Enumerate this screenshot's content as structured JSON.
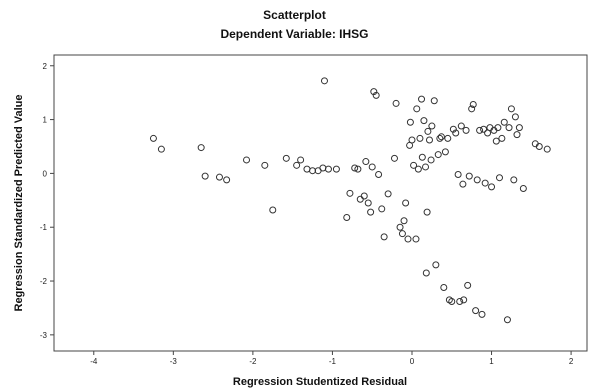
{
  "chart_data": {
    "type": "scatter",
    "title": "Scatterplot",
    "subtitle": "Dependent Variable: IHSG",
    "xlabel": "Regression Studentized Residual",
    "ylabel": "Regression Standardized Predicted Value",
    "xlim": [
      -4.5,
      2.2
    ],
    "ylim": [
      -3.3,
      2.2
    ],
    "xticks": [
      {
        "value": -4,
        "label": "-4"
      },
      {
        "value": -3,
        "label": "-3"
      },
      {
        "value": -2,
        "label": "-2"
      },
      {
        "value": -1,
        "label": "-1"
      },
      {
        "value": 0,
        "label": "0"
      },
      {
        "value": 1,
        "label": "1"
      },
      {
        "value": 2,
        "label": "2"
      }
    ],
    "yticks": [
      {
        "value": 2,
        "label": "2"
      },
      {
        "value": 1,
        "label": "1"
      },
      {
        "value": 0,
        "label": "0"
      },
      {
        "value": -1,
        "label": "-1"
      },
      {
        "value": -2,
        "label": "-2"
      },
      {
        "value": -3,
        "label": "-3"
      }
    ],
    "grid": false,
    "marker_color": "#333333",
    "background_color": "#ffffff",
    "points": [
      {
        "x": -3.25,
        "y": 0.65
      },
      {
        "x": -3.15,
        "y": 0.45
      },
      {
        "x": -2.65,
        "y": 0.48
      },
      {
        "x": -2.6,
        "y": -0.05
      },
      {
        "x": -2.42,
        "y": -0.07
      },
      {
        "x": -2.33,
        "y": -0.12
      },
      {
        "x": -2.08,
        "y": 0.25
      },
      {
        "x": -1.85,
        "y": 0.15
      },
      {
        "x": -1.75,
        "y": -0.68
      },
      {
        "x": -1.58,
        "y": 0.28
      },
      {
        "x": -1.45,
        "y": 0.15
      },
      {
        "x": -1.4,
        "y": 0.25
      },
      {
        "x": -1.32,
        "y": 0.08
      },
      {
        "x": -1.25,
        "y": 0.05
      },
      {
        "x": -1.18,
        "y": 0.05
      },
      {
        "x": -1.12,
        "y": 0.1
      },
      {
        "x": -1.1,
        "y": 1.72
      },
      {
        "x": -1.05,
        "y": 0.08
      },
      {
        "x": -0.95,
        "y": 0.08
      },
      {
        "x": -0.82,
        "y": -0.82
      },
      {
        "x": -0.78,
        "y": -0.37
      },
      {
        "x": -0.72,
        "y": 0.1
      },
      {
        "x": -0.68,
        "y": 0.08
      },
      {
        "x": -0.65,
        "y": -0.48
      },
      {
        "x": -0.6,
        "y": -0.42
      },
      {
        "x": -0.58,
        "y": 0.22
      },
      {
        "x": -0.55,
        "y": -0.55
      },
      {
        "x": -0.52,
        "y": -0.72
      },
      {
        "x": -0.5,
        "y": 0.12
      },
      {
        "x": -0.48,
        "y": 1.52
      },
      {
        "x": -0.45,
        "y": 1.45
      },
      {
        "x": -0.42,
        "y": -0.02
      },
      {
        "x": -0.38,
        "y": -0.66
      },
      {
        "x": -0.35,
        "y": -1.18
      },
      {
        "x": -0.3,
        "y": -0.38
      },
      {
        "x": -0.22,
        "y": 0.28
      },
      {
        "x": -0.2,
        "y": 1.3
      },
      {
        "x": -0.15,
        "y": -1.0
      },
      {
        "x": -0.12,
        "y": -1.12
      },
      {
        "x": -0.1,
        "y": -0.88
      },
      {
        "x": -0.08,
        "y": -0.55
      },
      {
        "x": -0.05,
        "y": -1.22
      },
      {
        "x": -0.03,
        "y": 0.52
      },
      {
        "x": -0.02,
        "y": 0.95
      },
      {
        "x": 0.0,
        "y": 0.62
      },
      {
        "x": 0.02,
        "y": 0.15
      },
      {
        "x": 0.05,
        "y": -1.22
      },
      {
        "x": 0.06,
        "y": 1.2
      },
      {
        "x": 0.08,
        "y": 0.08
      },
      {
        "x": 0.1,
        "y": 0.65
      },
      {
        "x": 0.12,
        "y": 1.38
      },
      {
        "x": 0.13,
        "y": 0.3
      },
      {
        "x": 0.15,
        "y": 0.98
      },
      {
        "x": 0.17,
        "y": 0.12
      },
      {
        "x": 0.18,
        "y": -1.85
      },
      {
        "x": 0.19,
        "y": -0.72
      },
      {
        "x": 0.2,
        "y": 0.78
      },
      {
        "x": 0.22,
        "y": 0.62
      },
      {
        "x": 0.24,
        "y": 0.25
      },
      {
        "x": 0.25,
        "y": 0.88
      },
      {
        "x": 0.28,
        "y": 1.35
      },
      {
        "x": 0.3,
        "y": -1.7
      },
      {
        "x": 0.33,
        "y": 0.35
      },
      {
        "x": 0.35,
        "y": 0.65
      },
      {
        "x": 0.37,
        "y": 0.68
      },
      {
        "x": 0.4,
        "y": -2.12
      },
      {
        "x": 0.42,
        "y": 0.4
      },
      {
        "x": 0.45,
        "y": 0.65
      },
      {
        "x": 0.47,
        "y": -2.35
      },
      {
        "x": 0.5,
        "y": -2.38
      },
      {
        "x": 0.52,
        "y": 0.82
      },
      {
        "x": 0.55,
        "y": 0.75
      },
      {
        "x": 0.58,
        "y": -0.02
      },
      {
        "x": 0.6,
        "y": -2.38
      },
      {
        "x": 0.62,
        "y": 0.88
      },
      {
        "x": 0.64,
        "y": -0.2
      },
      {
        "x": 0.65,
        "y": -2.35
      },
      {
        "x": 0.68,
        "y": 0.8
      },
      {
        "x": 0.7,
        "y": -2.08
      },
      {
        "x": 0.72,
        "y": -0.05
      },
      {
        "x": 0.75,
        "y": 1.2
      },
      {
        "x": 0.77,
        "y": 1.28
      },
      {
        "x": 0.8,
        "y": -2.55
      },
      {
        "x": 0.82,
        "y": -0.12
      },
      {
        "x": 0.85,
        "y": 0.8
      },
      {
        "x": 0.88,
        "y": -2.62
      },
      {
        "x": 0.9,
        "y": 0.82
      },
      {
        "x": 0.92,
        "y": -0.18
      },
      {
        "x": 0.95,
        "y": 0.75
      },
      {
        "x": 0.98,
        "y": 0.85
      },
      {
        "x": 1.0,
        "y": -0.25
      },
      {
        "x": 1.03,
        "y": 0.8
      },
      {
        "x": 1.06,
        "y": 0.6
      },
      {
        "x": 1.08,
        "y": 0.85
      },
      {
        "x": 1.1,
        "y": -0.08
      },
      {
        "x": 1.13,
        "y": 0.65
      },
      {
        "x": 1.16,
        "y": 0.95
      },
      {
        "x": 1.2,
        "y": -2.72
      },
      {
        "x": 1.22,
        "y": 0.85
      },
      {
        "x": 1.25,
        "y": 1.2
      },
      {
        "x": 1.28,
        "y": -0.12
      },
      {
        "x": 1.3,
        "y": 1.05
      },
      {
        "x": 1.32,
        "y": 0.72
      },
      {
        "x": 1.35,
        "y": 0.85
      },
      {
        "x": 1.4,
        "y": -0.28
      },
      {
        "x": 1.55,
        "y": 0.55
      },
      {
        "x": 1.6,
        "y": 0.5
      },
      {
        "x": 1.7,
        "y": 0.45
      }
    ]
  }
}
